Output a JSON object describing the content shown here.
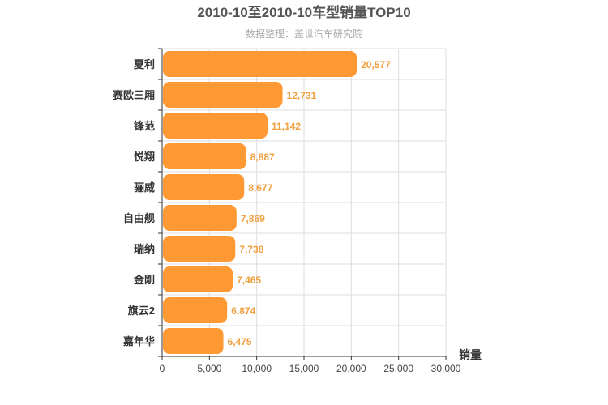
{
  "colors": {
    "bar": "#ff9933",
    "value_label": "#f0a040",
    "grid": "#dddddd",
    "axis": "#333333"
  },
  "chart_data": {
    "type": "bar",
    "orientation": "horizontal",
    "title": "2010-10至2010-10车型销量TOP10",
    "subtitle": "数据整理：盖世汽车研究院",
    "xlabel": "销量",
    "xlim": [
      0,
      30000
    ],
    "xticks": [
      "0",
      "5,000",
      "10,000",
      "15,000",
      "20,000",
      "25,000",
      "30,000"
    ],
    "grid": true,
    "categories": [
      "夏利",
      "赛欧三厢",
      "锋范",
      "悦翔",
      "骊威",
      "自由舰",
      "瑞纳",
      "金刚",
      "旗云2",
      "嘉年华"
    ],
    "values": [
      20577,
      12731,
      11142,
      8887,
      8677,
      7869,
      7738,
      7465,
      6874,
      6475
    ],
    "value_labels": [
      "20,577",
      "12,731",
      "11,142",
      "8,887",
      "8,677",
      "7,869",
      "7,738",
      "7,465",
      "6,874",
      "6,475"
    ]
  }
}
